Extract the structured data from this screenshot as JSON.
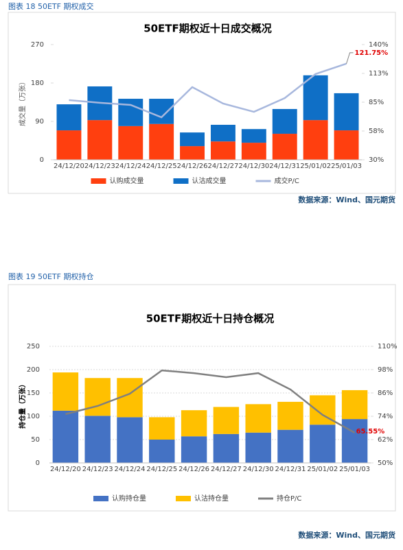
{
  "chart_data": [
    {
      "type": "bar",
      "stacked": true,
      "caption": "图表 18 50ETF 期权成交",
      "title": "50ETF期权近十日成交概况",
      "ylabel": "成交量（万张）",
      "source": "数据来源：Wind、国元期货",
      "categories": [
        "24/12/20",
        "24/12/23",
        "24/12/24",
        "24/12/25",
        "24/12/26",
        "24/12/27",
        "24/12/30",
        "24/12/31",
        "25/01/02",
        "25/01/03"
      ],
      "series": [
        {
          "name": "认购成交量",
          "color": "#ff3f0f",
          "values": [
            69,
            93,
            79,
            84,
            32,
            43,
            40,
            61,
            93,
            69
          ]
        },
        {
          "name": "认沽成交量",
          "color": "#0f6fc6",
          "values": [
            61,
            79,
            64,
            59,
            32,
            39,
            32,
            58,
            105,
            87
          ]
        },
        {
          "name": "成交P/C",
          "type": "line",
          "axis": "y2",
          "color": "#a7b7dd",
          "values": [
            87.0,
            84.4,
            82.4,
            70.6,
            99.4,
            83.7,
            75.8,
            88.9,
            111.9,
            121.75
          ],
          "value_labels": [
            null,
            null,
            null,
            null,
            null,
            null,
            null,
            null,
            null,
            "121.75%"
          ]
        }
      ],
      "ylim": [
        0,
        270
      ],
      "yticks": [
        0,
        90,
        180,
        270
      ],
      "y2lim": [
        30,
        140
      ],
      "y2ticks": [
        {
          "value": 30,
          "label": "30%"
        },
        {
          "value": 57.5,
          "label": "58%"
        },
        {
          "value": 85,
          "label": "85%"
        },
        {
          "value": 112.5,
          "label": "113%"
        },
        {
          "value": 140,
          "label": "140%"
        }
      ],
      "grid": false,
      "legend": "bottom"
    },
    {
      "type": "bar",
      "stacked": true,
      "caption": "图表 19 50ETF 期权持仓",
      "title": "50ETF期权近十日持仓概况",
      "ylabel": "持仓量（万张）",
      "source": "数据来源：Wind、国元期货",
      "categories": [
        "24/12/20",
        "24/12/23",
        "24/12/24",
        "24/12/25",
        "24/12/26",
        "24/12/27",
        "24/12/30",
        "24/12/31",
        "25/01/02",
        "25/01/03"
      ],
      "series": [
        {
          "name": "认购持仓量",
          "color": "#4472c4",
          "values": [
            112,
            101,
            98,
            50,
            57,
            62,
            65,
            71,
            82,
            94
          ]
        },
        {
          "name": "认沽持仓量",
          "color": "#ffc000",
          "values": [
            82,
            81,
            84,
            48,
            56,
            58,
            61,
            60,
            63,
            62
          ]
        },
        {
          "name": "持仓P/C",
          "type": "line",
          "axis": "y2",
          "color": "#7f7f7f",
          "values": [
            75.1,
            79.3,
            85.6,
            97.6,
            96.2,
            94.1,
            96.2,
            87.8,
            74.7,
            65.55
          ],
          "value_labels": [
            null,
            null,
            null,
            null,
            null,
            null,
            null,
            null,
            null,
            "65.55%"
          ]
        }
      ],
      "ylim": [
        0,
        250
      ],
      "yticks": [
        0,
        50,
        100,
        150,
        200,
        250
      ],
      "y2lim": [
        50,
        110
      ],
      "y2ticks": [
        {
          "value": 50,
          "label": "50%"
        },
        {
          "value": 62,
          "label": "62%"
        },
        {
          "value": 74,
          "label": "74%"
        },
        {
          "value": 86,
          "label": "86%"
        },
        {
          "value": 98,
          "label": "98%"
        },
        {
          "value": 110,
          "label": "110%"
        }
      ],
      "grid": true,
      "legend": "bottom"
    }
  ]
}
